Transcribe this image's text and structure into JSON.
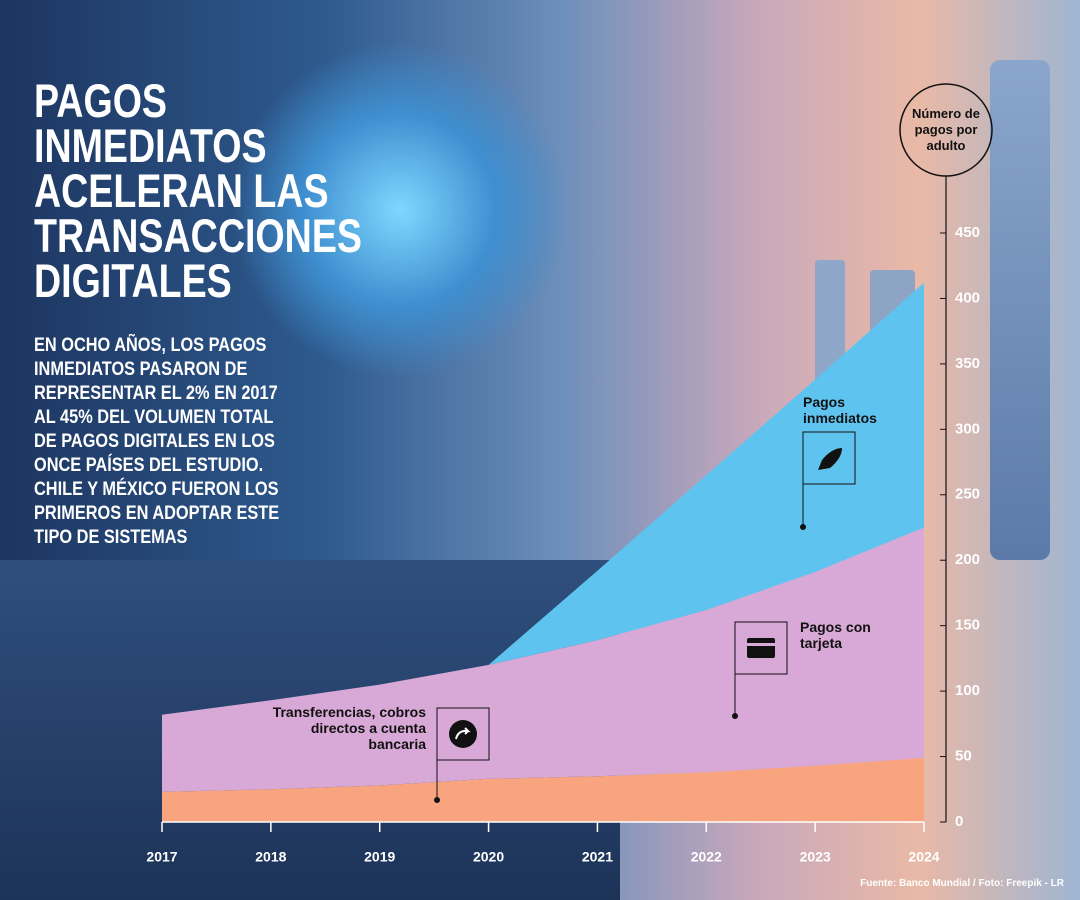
{
  "title": "PAGOS INMEDIATOS ACELERAN LAS TRANSACCIONES DIGITALES",
  "subtitle": "EN OCHO AÑOS, LOS PAGOS INMEDIATOS PASARON DE REPRESENTAR EL 2% EN 2017 AL 45% DEL VOLUMEN TOTAL DE PAGOS DIGITALES EN LOS ONCE PAÍSES DEL ESTUDIO. CHILE Y MÉXICO FUERON LOS PRIMEROS EN ADOPTAR ESTE TIPO DE SISTEMAS",
  "source": "Fuente: Banco Mundial / Foto: Freepik - LR",
  "chart_data": {
    "type": "stacked-area",
    "y_label": "Número de pagos por adulto",
    "categories": [
      "2017",
      "2018",
      "2019",
      "2020",
      "2021",
      "2022",
      "2023",
      "2024"
    ],
    "series": [
      {
        "name": "Transferencias, cobros directos a cuenta bancaria",
        "color": "#f7a47f",
        "values": [
          23,
          25,
          28,
          33,
          35,
          38,
          43,
          49
        ]
      },
      {
        "name": "Pagos con tarjeta",
        "color": "#d8a9d6",
        "values": [
          59,
          68,
          77,
          87,
          104,
          124,
          148,
          176
        ]
      },
      {
        "name": "Pagos inmediatos",
        "color": "#5ec4ef",
        "values": [
          null,
          null,
          null,
          0,
          53,
          103,
          147,
          187
        ]
      }
    ],
    "ylim": [
      0,
      450
    ],
    "yticks": [
      0,
      50,
      100,
      150,
      200,
      250,
      300,
      350,
      400,
      450
    ]
  }
}
